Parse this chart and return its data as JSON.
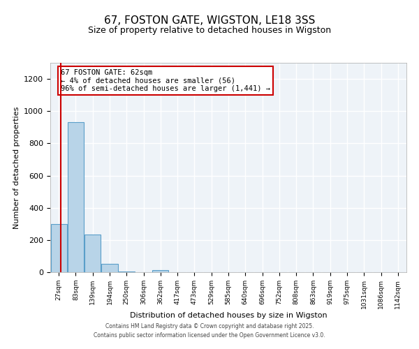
{
  "title": "67, FOSTON GATE, WIGSTON, LE18 3SS",
  "subtitle": "Size of property relative to detached houses in Wigston",
  "xlabel": "Distribution of detached houses by size in Wigston",
  "ylabel": "Number of detached properties",
  "bar_color": "#b8d4e8",
  "bar_edge_color": "#5a9ec9",
  "bins": [
    "27sqm",
    "83sqm",
    "139sqm",
    "194sqm",
    "250sqm",
    "306sqm",
    "362sqm",
    "417sqm",
    "473sqm",
    "529sqm",
    "585sqm",
    "640sqm",
    "696sqm",
    "752sqm",
    "808sqm",
    "863sqm",
    "919sqm",
    "975sqm",
    "1031sqm",
    "1086sqm",
    "1142sqm"
  ],
  "values": [
    300,
    930,
    235,
    50,
    5,
    0,
    15,
    0,
    0,
    0,
    0,
    0,
    0,
    0,
    0,
    0,
    0,
    0,
    0,
    0,
    0
  ],
  "ylim": [
    0,
    1300
  ],
  "yticks": [
    0,
    200,
    400,
    600,
    800,
    1000,
    1200
  ],
  "marker_color": "#cc0000",
  "annotation_text": "67 FOSTON GATE: 62sqm\n← 4% of detached houses are smaller (56)\n96% of semi-detached houses are larger (1,441) →",
  "annotation_box_color": "#cc0000",
  "footer1": "Contains HM Land Registry data © Crown copyright and database right 2025.",
  "footer2": "Contains public sector information licensed under the Open Government Licence v3.0.",
  "background_color": "#eef3f8",
  "grid_color": "#ffffff",
  "fig_bg_color": "#ffffff"
}
